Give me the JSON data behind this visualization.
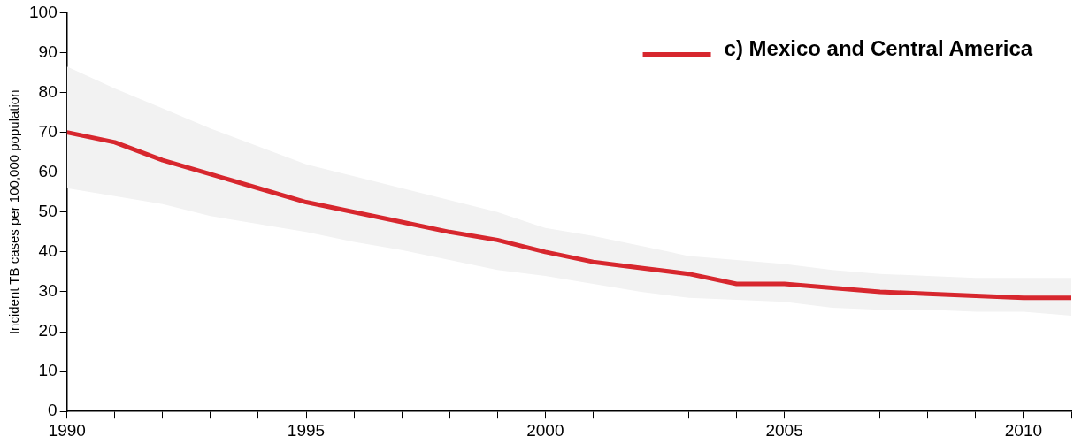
{
  "chart_data": {
    "type": "line",
    "ylabel": "Incident TB cases per 100,000 population",
    "x": [
      1990,
      1991,
      1992,
      1993,
      1994,
      1995,
      1996,
      1997,
      1998,
      1999,
      2000,
      2001,
      2002,
      2003,
      2004,
      2005,
      2006,
      2007,
      2008,
      2009,
      2010,
      2011
    ],
    "series": [
      {
        "name": "c) Mexico and Central America",
        "color": "#d7272e",
        "values": [
          70,
          67.5,
          63,
          59.5,
          56,
          52.5,
          50,
          47.5,
          45,
          43,
          40,
          37.5,
          36,
          34.5,
          32,
          32,
          31,
          30,
          29.5,
          29,
          28.5,
          28.5
        ],
        "upper": [
          86.5,
          81,
          76,
          71,
          66.5,
          62,
          59,
          56,
          53,
          50,
          46,
          44,
          41.5,
          39,
          38,
          37,
          35.5,
          34.5,
          34,
          33.5,
          33.5,
          33.5
        ],
        "lower": [
          56,
          54,
          52,
          49,
          47,
          45,
          42.5,
          40.5,
          38,
          35.5,
          34,
          32,
          30,
          28.5,
          28,
          27.5,
          26,
          25.5,
          25.5,
          25,
          25,
          24
        ]
      }
    ],
    "xlim": [
      1990,
      2011
    ],
    "xticks": [
      1990,
      {
        "value": 1991,
        "label": null
      },
      {
        "value": 1992,
        "label": null
      },
      {
        "value": 1993,
        "label": null
      },
      {
        "value": 1994,
        "label": null
      },
      1995,
      {
        "value": 1996,
        "label": null
      },
      {
        "value": 1997,
        "label": null
      },
      {
        "value": 1998,
        "label": null
      },
      {
        "value": 1999,
        "label": null
      },
      2000,
      {
        "value": 2001,
        "label": null
      },
      {
        "value": 2002,
        "label": null
      },
      {
        "value": 2003,
        "label": null
      },
      {
        "value": 2004,
        "label": null
      },
      2005,
      {
        "value": 2006,
        "label": null
      },
      {
        "value": 2007,
        "label": null
      },
      {
        "value": 2008,
        "label": null
      },
      {
        "value": 2009,
        "label": null
      },
      2010,
      {
        "value": 2011,
        "label": null
      }
    ],
    "ylim": [
      0,
      100
    ],
    "yticks": [
      0,
      10,
      20,
      30,
      40,
      50,
      60,
      70,
      80,
      90,
      100
    ],
    "grid": false,
    "legend": "top right",
    "marker": "none",
    "line_style": "solid"
  }
}
